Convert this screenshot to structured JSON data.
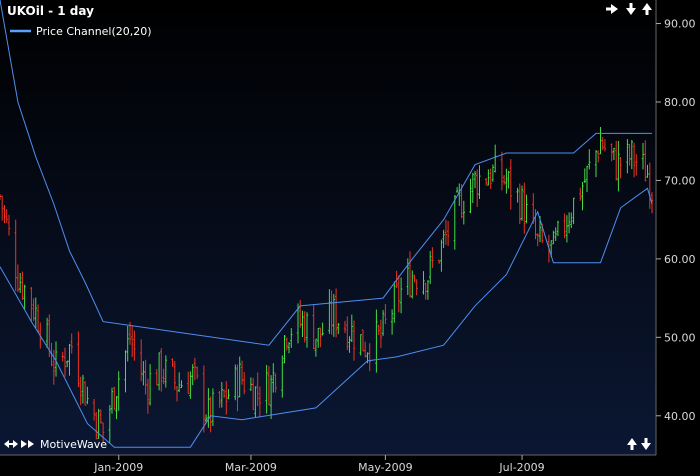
{
  "header": {
    "title": "UKOil - 1 day"
  },
  "legend": {
    "label": "Price Channel(20,20)",
    "color": "#5aa0ff"
  },
  "footer": {
    "brand": "MotiveWave"
  },
  "colors": {
    "background_top": "#000000",
    "background_bottom": "#0b1733",
    "bar_up": "#44dd44",
    "bar_down": "#ee3322",
    "channel": "#4f8ef0",
    "axis_panel": "#000000"
  },
  "icons": {
    "top_right": [
      "right-arrow-icon",
      "down-arrow-icon",
      "up-arrow-icon"
    ],
    "bottom_left": [
      "left-right-arrow-icon",
      "double-right-arrow-icon"
    ],
    "bottom_right": [
      "up-arrow-icon",
      "down-arrow-icon"
    ]
  },
  "chart_data": {
    "type": "ohlc",
    "x_unit": "trading day",
    "x_range": [
      "2008-11-10",
      "2009-08-28"
    ],
    "ylim": [
      35,
      93
    ],
    "y_ticks": [
      40,
      50,
      60,
      70,
      80,
      90
    ],
    "y_tick_labels": [
      "40.00",
      "50.00",
      "60.00",
      "70.00",
      "80.00",
      "90.00"
    ],
    "x_ticks": [
      {
        "label": "Jan-2009",
        "date": "2009-01-02"
      },
      {
        "label": "Mar-2009",
        "date": "2009-03-02"
      },
      {
        "label": "May-2009",
        "date": "2009-05-01"
      },
      {
        "label": "Jul-2009",
        "date": "2009-07-01"
      }
    ],
    "series": [
      {
        "name": "Price Channel(20,20)",
        "description": "upper and lower channel lines"
      }
    ],
    "price_path": {
      "start_date": "2008-11-10",
      "points": [
        [
          "2008-11-10",
          68
        ],
        [
          "2008-11-18",
          58
        ],
        [
          "2008-11-28",
          52
        ],
        [
          "2008-12-05",
          46
        ],
        [
          "2008-12-12",
          49
        ],
        [
          "2008-12-19",
          42
        ],
        [
          "2008-12-26",
          38
        ],
        [
          "2009-01-02",
          45
        ],
        [
          "2009-01-07",
          50
        ],
        [
          "2009-01-14",
          44
        ],
        [
          "2009-01-21",
          46
        ],
        [
          "2009-01-28",
          44
        ],
        [
          "2009-02-04",
          45
        ],
        [
          "2009-02-11",
          40
        ],
        [
          "2009-02-18",
          42
        ],
        [
          "2009-02-25",
          45
        ],
        [
          "2009-03-04",
          43
        ],
        [
          "2009-03-11",
          44
        ],
        [
          "2009-03-18",
          51
        ],
        [
          "2009-03-25",
          52
        ],
        [
          "2009-04-01",
          50
        ],
        [
          "2009-04-08",
          53
        ],
        [
          "2009-04-15",
          51
        ],
        [
          "2009-04-22",
          49
        ],
        [
          "2009-04-29",
          50
        ],
        [
          "2009-05-06",
          55
        ],
        [
          "2009-05-13",
          58
        ],
        [
          "2009-05-20",
          58
        ],
        [
          "2009-05-27",
          62
        ],
        [
          "2009-06-03",
          67
        ],
        [
          "2009-06-10",
          70
        ],
        [
          "2009-06-17",
          71
        ],
        [
          "2009-06-24",
          70
        ],
        [
          "2009-07-01",
          67
        ],
        [
          "2009-07-08",
          62
        ],
        [
          "2009-07-15",
          61
        ],
        [
          "2009-07-22",
          66
        ],
        [
          "2009-07-29",
          70
        ],
        [
          "2009-08-05",
          75
        ],
        [
          "2009-08-12",
          72
        ],
        [
          "2009-08-19",
          73
        ],
        [
          "2009-08-26",
          71
        ],
        [
          "2009-08-28",
          69
        ]
      ]
    },
    "upper_channel_path": [
      [
        "2008-11-10",
        93
      ],
      [
        "2008-11-18",
        80
      ],
      [
        "2008-11-26",
        73
      ],
      [
        "2008-12-04",
        67
      ],
      [
        "2008-12-11",
        61
      ],
      [
        "2008-12-18",
        57
      ],
      [
        "2008-12-26",
        52
      ],
      [
        "2009-03-10",
        49
      ],
      [
        "2009-03-24",
        54
      ],
      [
        "2009-04-30",
        55
      ],
      [
        "2009-05-13",
        60
      ],
      [
        "2009-05-27",
        65
      ],
      [
        "2009-06-10",
        72
      ],
      [
        "2009-06-24",
        73.5
      ],
      [
        "2009-07-24",
        73.5
      ],
      [
        "2009-08-03",
        76
      ],
      [
        "2009-08-28",
        76
      ]
    ],
    "lower_channel_path": [
      [
        "2008-11-10",
        59
      ],
      [
        "2008-11-24",
        52
      ],
      [
        "2008-12-05",
        47
      ],
      [
        "2008-12-19",
        39
      ],
      [
        "2008-12-31",
        36
      ],
      [
        "2009-02-03",
        36
      ],
      [
        "2009-02-12",
        40
      ],
      [
        "2009-02-26",
        39.5
      ],
      [
        "2009-03-31",
        41
      ],
      [
        "2009-04-23",
        47
      ],
      [
        "2009-05-06",
        47.5
      ],
      [
        "2009-05-27",
        49
      ],
      [
        "2009-06-10",
        54
      ],
      [
        "2009-06-24",
        58
      ],
      [
        "2009-07-08",
        66
      ],
      [
        "2009-07-15",
        59.5
      ],
      [
        "2009-08-05",
        59.5
      ],
      [
        "2009-08-14",
        66.5
      ],
      [
        "2009-08-26",
        69
      ],
      [
        "2009-08-28",
        67
      ]
    ]
  }
}
